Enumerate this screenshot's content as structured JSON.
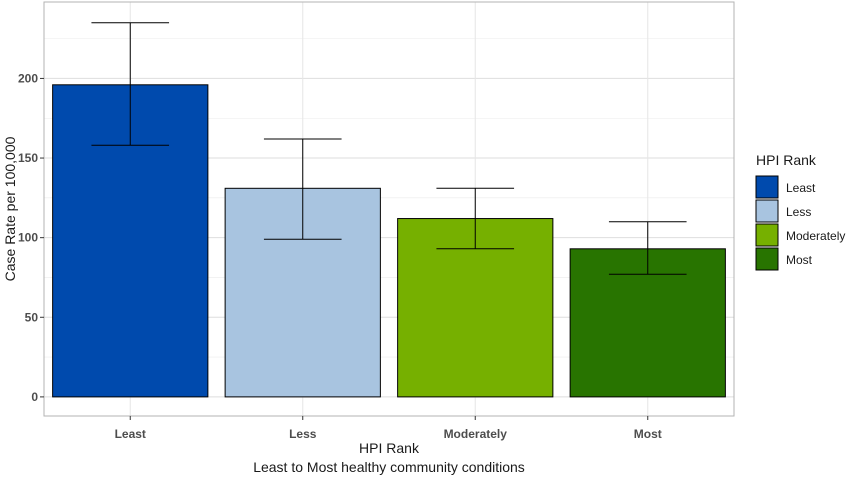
{
  "chart_data": {
    "type": "bar",
    "categories": [
      "Least",
      "Less",
      "Moderately",
      "Most"
    ],
    "values": [
      196,
      131,
      112,
      93
    ],
    "error_lower": [
      158,
      99,
      93,
      77
    ],
    "error_upper": [
      235,
      162,
      131,
      110
    ],
    "colors": [
      "#004aad",
      "#a8c4e0",
      "#76b000",
      "#287400"
    ],
    "ylabel": "Case Rate per 100,000",
    "xlabel": "HPI Rank",
    "xlabel_line2": "Least to Most healthy community conditions",
    "ylim": [
      -12,
      248
    ],
    "yticks": [
      0,
      50,
      100,
      150,
      200
    ],
    "grid": true,
    "legend": {
      "title": "HPI Rank",
      "placement": "right",
      "entries": [
        "Least",
        "Less",
        "Moderately",
        "Most"
      ]
    }
  }
}
